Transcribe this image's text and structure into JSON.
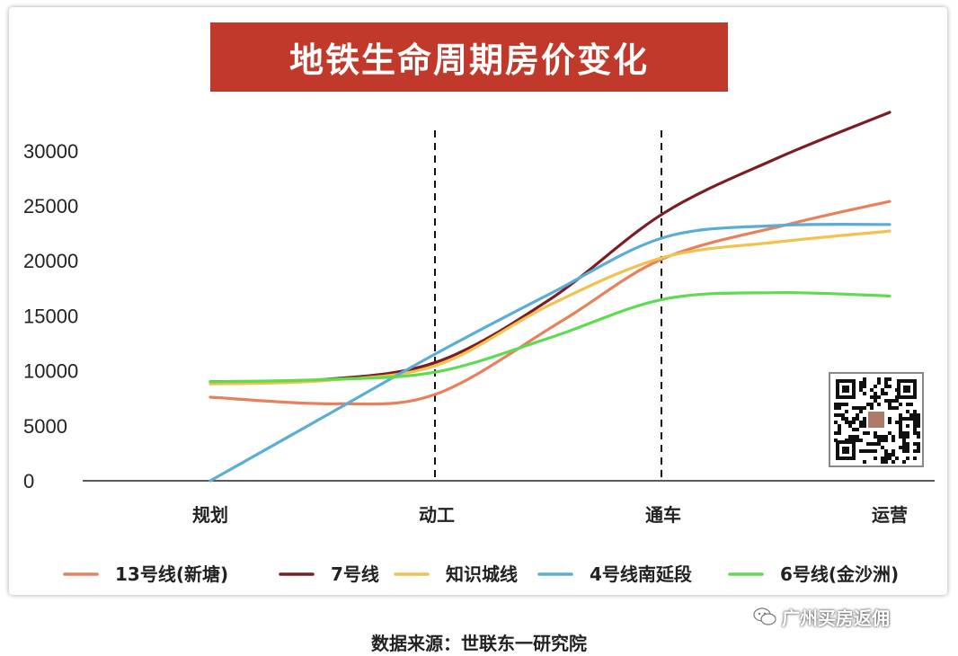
{
  "title": "地铁生命周期房价变化",
  "source": "数据来源：世联东一研究院",
  "watermark": "广州买房返佣",
  "chart_data": {
    "type": "line",
    "title": "地铁生命周期房价变化",
    "categories": [
      "规划",
      "动工",
      "通车",
      "运营"
    ],
    "yticks": [
      0,
      5000,
      10000,
      15000,
      20000,
      25000,
      30000
    ],
    "ylim": [
      0,
      30000
    ],
    "dashed_lines_at": [
      "动工",
      "通车"
    ],
    "legend_position": "bottom",
    "series": [
      {
        "name": "13号线(新塘)",
        "color": "#e8805c",
        "points": [
          [
            0,
            7600
          ],
          [
            0.55,
            7000
          ],
          [
            1,
            7900
          ],
          [
            1.55,
            14500
          ],
          [
            2,
            20200
          ],
          [
            2.55,
            23300
          ],
          [
            3,
            25400
          ]
        ]
      },
      {
        "name": "7号线",
        "color": "#7b1e22",
        "points": [
          [
            0,
            9000
          ],
          [
            0.5,
            9200
          ],
          [
            1,
            10800
          ],
          [
            1.5,
            16500
          ],
          [
            2,
            24300
          ],
          [
            2.5,
            29300
          ],
          [
            3,
            33500
          ]
        ]
      },
      {
        "name": "知识城线",
        "color": "#f2c14e",
        "points": [
          [
            0,
            8800
          ],
          [
            0.5,
            9100
          ],
          [
            1,
            10500
          ],
          [
            1.5,
            16000
          ],
          [
            2,
            20300
          ],
          [
            2.5,
            21700
          ],
          [
            3,
            22700
          ]
        ]
      },
      {
        "name": "4号线南延段",
        "color": "#5aaed6",
        "points": [
          [
            0,
            0
          ],
          [
            0.5,
            5800
          ],
          [
            1,
            11600
          ],
          [
            1.5,
            17000
          ],
          [
            2,
            22100
          ],
          [
            2.5,
            23200
          ],
          [
            3,
            23300
          ]
        ]
      },
      {
        "name": "6号线(金沙洲)",
        "color": "#5cdc4e",
        "points": [
          [
            0,
            9000
          ],
          [
            0.5,
            9200
          ],
          [
            1,
            9900
          ],
          [
            1.5,
            13000
          ],
          [
            2,
            16500
          ],
          [
            2.5,
            17100
          ],
          [
            3,
            16800
          ]
        ]
      }
    ]
  }
}
